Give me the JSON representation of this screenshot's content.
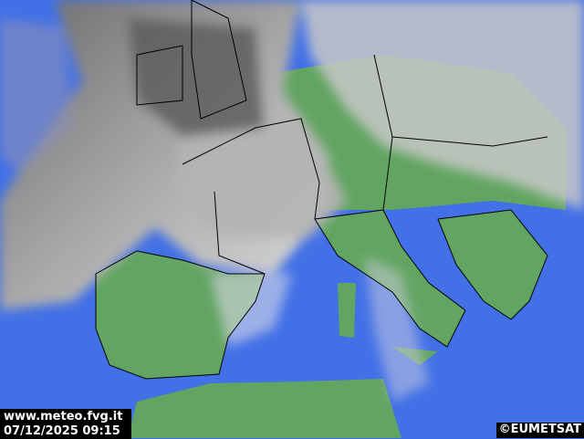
{
  "overlay": {
    "site": "www.meteo.fvg.it",
    "timestamp": "07/12/2025 09:15",
    "copyright": "©EUMETSAT"
  },
  "map": {
    "type": "satellite-composite",
    "region": "Europe",
    "colors": {
      "sea": "#3f6fe8",
      "land": "#5fa060",
      "cloud": "#9a9a9a",
      "borders": "#000000"
    }
  }
}
